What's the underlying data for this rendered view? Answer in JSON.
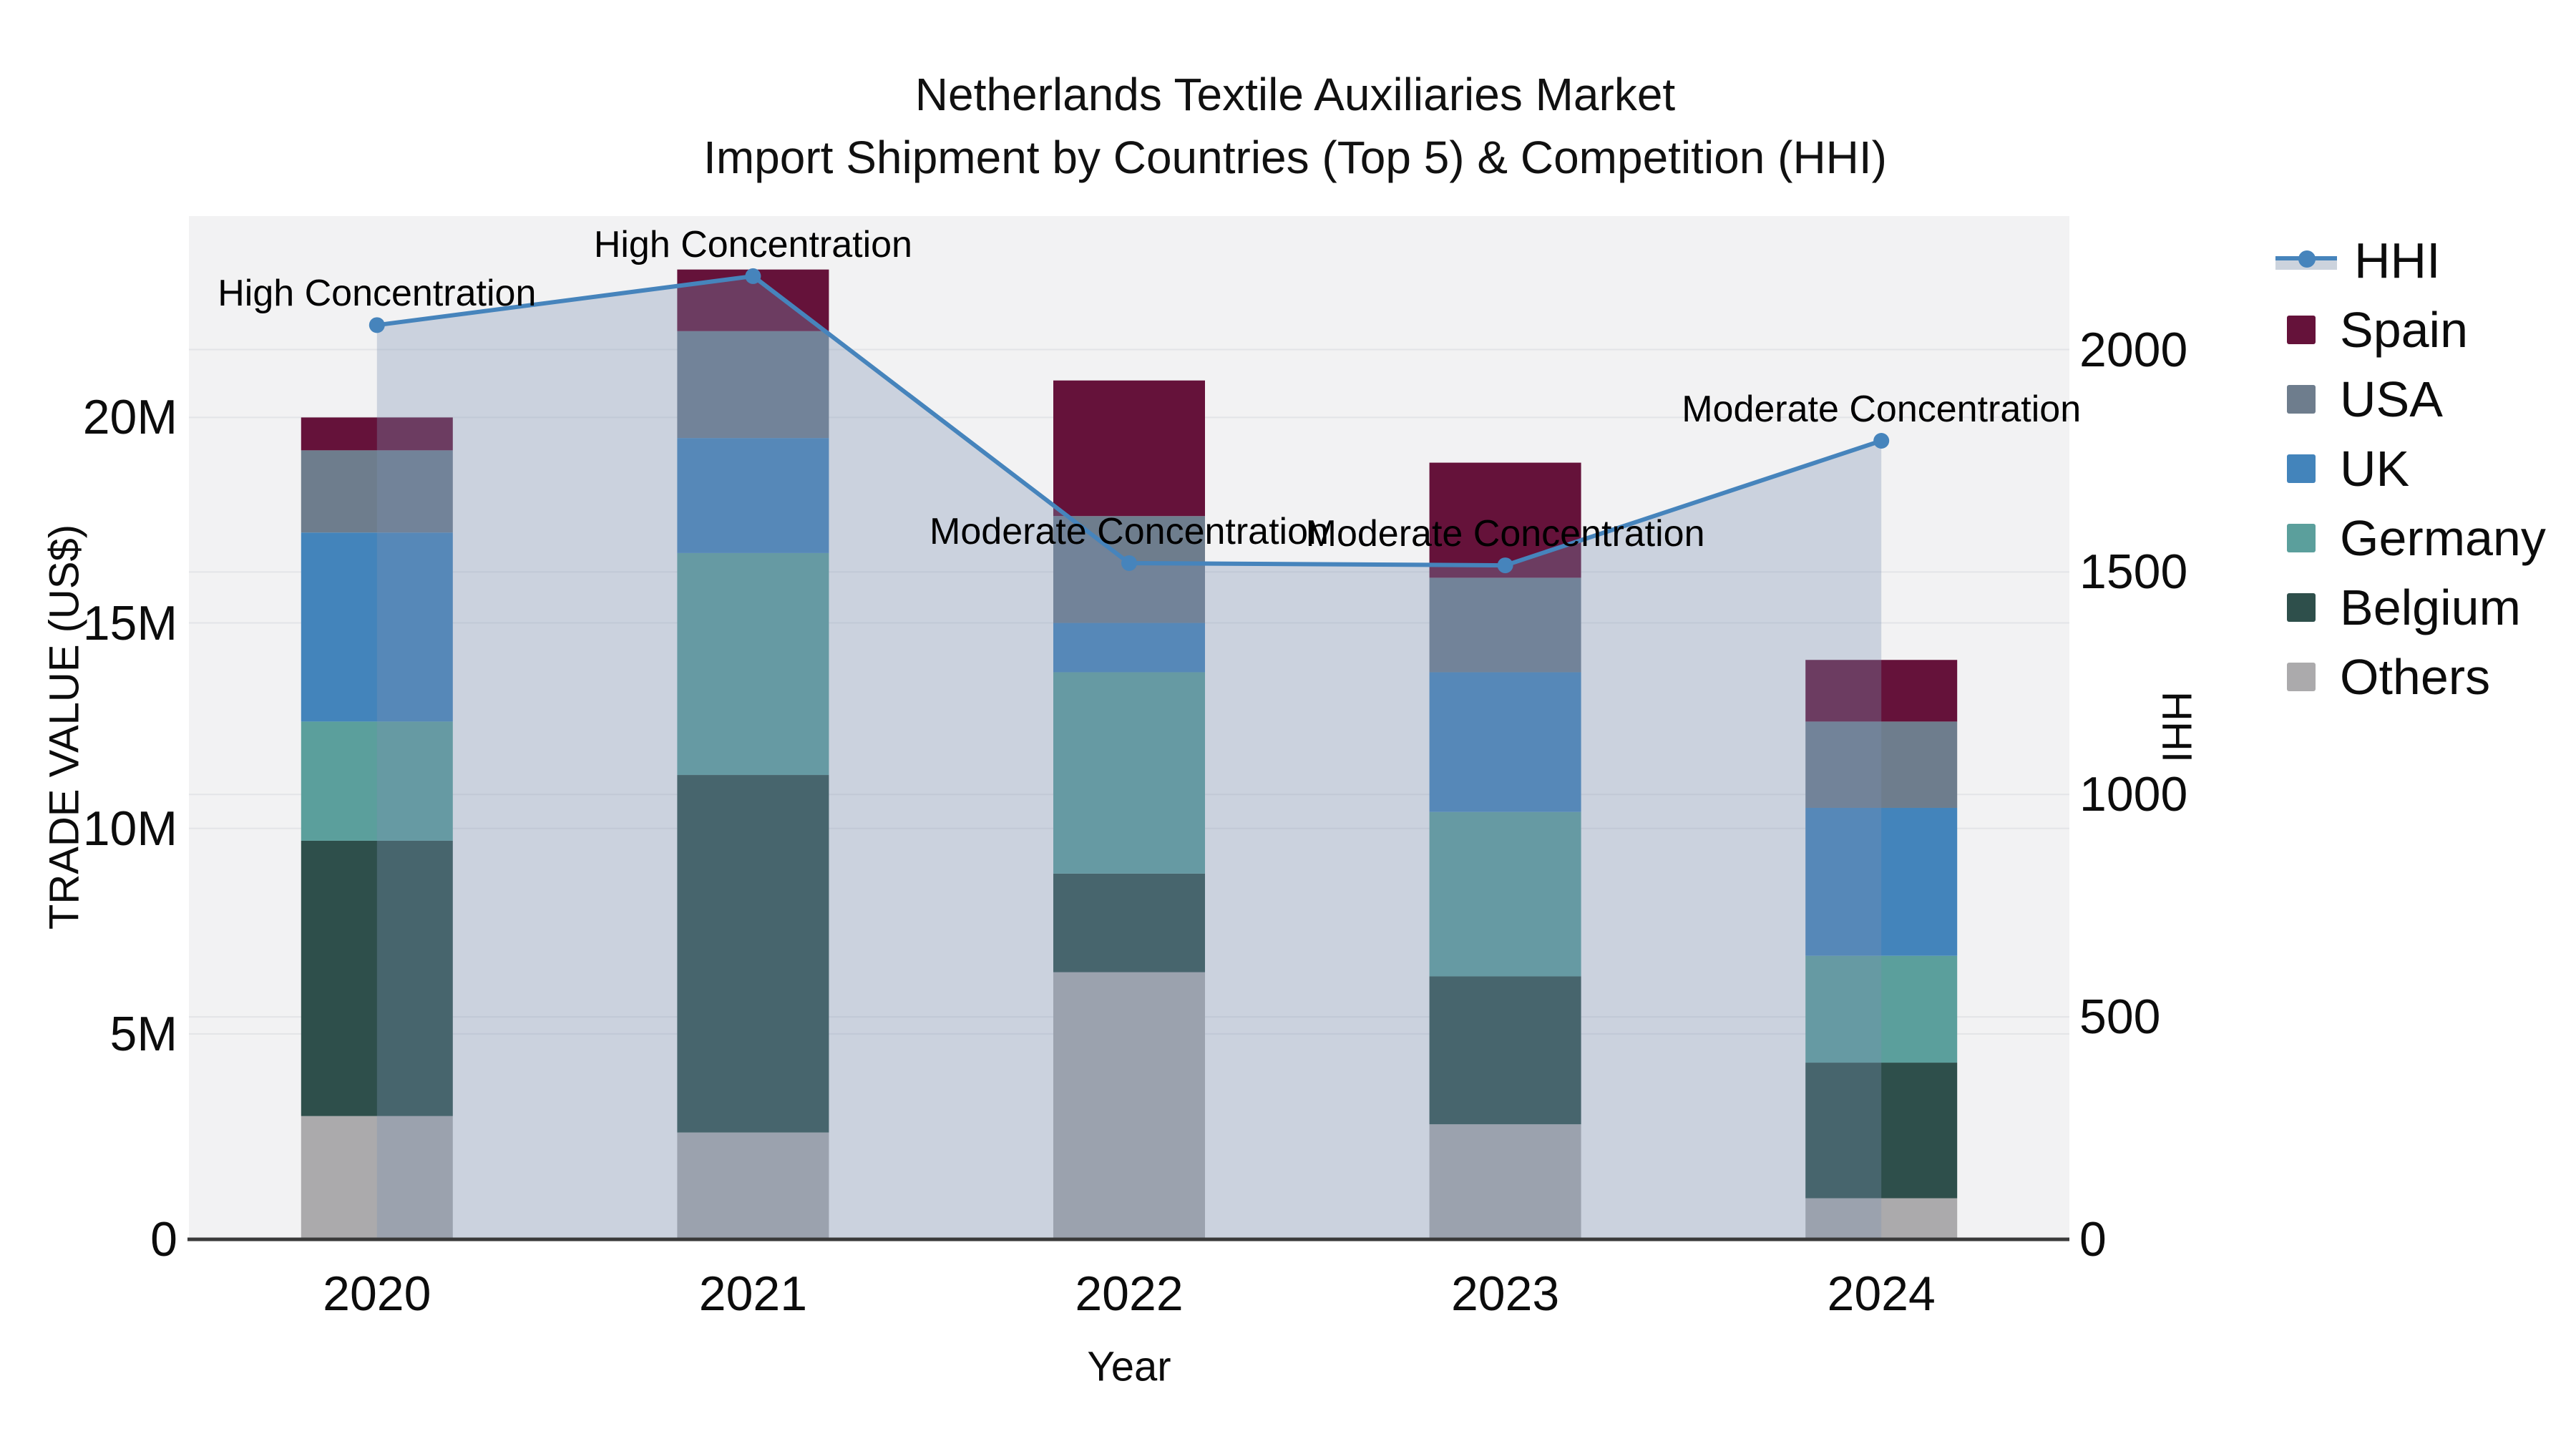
{
  "title": {
    "line1": "Netherlands Textile Auxiliaries Market",
    "line2": "Import Shipment by Countries (Top 5) & Competition (HHI)"
  },
  "axes": {
    "x": {
      "title": "Year"
    },
    "y_left": {
      "title": "TRADE VALUE (US$)",
      "ticks": [
        {
          "label": "0",
          "value": 0
        },
        {
          "label": "5M",
          "value": 5
        },
        {
          "label": "10M",
          "value": 10
        },
        {
          "label": "15M",
          "value": 15
        },
        {
          "label": "20M",
          "value": 20
        }
      ]
    },
    "y_right": {
      "title": "HHI",
      "ticks": [
        {
          "label": "0",
          "value": 0
        },
        {
          "label": "500",
          "value": 500
        },
        {
          "label": "1000",
          "value": 1000
        },
        {
          "label": "1500",
          "value": 1500
        },
        {
          "label": "2000",
          "value": 2000
        }
      ]
    }
  },
  "colors": {
    "plot_bg": "#f2f2f3",
    "grid": "#e3e4e7",
    "axis_line": "#3a3a3a",
    "hhi_line": "#4684bc",
    "hhi_area_fill": "rgba(125,145,180,0.33)",
    "hhi_legend_band": "#ccd3dd"
  },
  "legend": {
    "items": [
      {
        "label": "HHI",
        "type": "line",
        "color": "#4684bc"
      },
      {
        "label": "Spain",
        "type": "swatch",
        "color": "#65123a"
      },
      {
        "label": "USA",
        "type": "swatch",
        "color": "#6e7d8d"
      },
      {
        "label": "UK",
        "type": "swatch",
        "color": "#4384bb"
      },
      {
        "label": "Germany",
        "type": "swatch",
        "color": "#5b9f9c"
      },
      {
        "label": "Belgium",
        "type": "swatch",
        "color": "#2e4f4b"
      },
      {
        "label": "Others",
        "type": "swatch",
        "color": "#abaaac"
      }
    ]
  },
  "chart_data": {
    "type": "bar+line",
    "title": "Netherlands Textile Auxiliaries Market — Import Shipment by Countries (Top 5) & Competition (HHI)",
    "xlabel": "Year",
    "ylabel_left": "TRADE VALUE (US$)",
    "ylabel_right": "HHI",
    "categories": [
      "2020",
      "2021",
      "2022",
      "2023",
      "2024"
    ],
    "unit": "USD millions",
    "stack_note": "series listed top-to-bottom of stack; Others is bottom segment",
    "series": [
      {
        "name": "Spain",
        "color": "#65123a",
        "values": [
          0.8,
          1.5,
          3.3,
          2.8,
          1.5
        ]
      },
      {
        "name": "USA",
        "color": "#6e7d8d",
        "values": [
          2.0,
          2.6,
          2.6,
          2.3,
          2.1
        ]
      },
      {
        "name": "UK",
        "color": "#4384bb",
        "values": [
          4.6,
          2.8,
          1.2,
          3.4,
          3.6
        ]
      },
      {
        "name": "Germany",
        "color": "#5b9f9c",
        "values": [
          2.9,
          5.4,
          4.9,
          4.0,
          2.6
        ]
      },
      {
        "name": "Belgium",
        "color": "#2e4f4b",
        "values": [
          6.7,
          8.7,
          2.4,
          3.6,
          3.3
        ]
      },
      {
        "name": "Others",
        "color": "#abaaac",
        "values": [
          3.0,
          2.6,
          6.5,
          2.8,
          1.0
        ]
      }
    ],
    "totals": [
      20.0,
      23.6,
      20.9,
      18.9,
      14.1
    ],
    "hhi": {
      "name": "HHI",
      "color": "#4684bc",
      "fill": "rgba(125,145,180,0.33)",
      "values": [
        2055,
        2165,
        1520,
        1515,
        1795
      ]
    },
    "annotations": [
      {
        "category": "2020",
        "text": "High Concentration"
      },
      {
        "category": "2021",
        "text": "High Concentration"
      },
      {
        "category": "2022",
        "text": "Moderate Concentration"
      },
      {
        "category": "2023",
        "text": "Moderate Concentration"
      },
      {
        "category": "2024",
        "text": "Moderate Concentration"
      }
    ],
    "ylim_left": [
      0,
      24.9
    ],
    "ylim_right": [
      0,
      2300
    ],
    "grid": true,
    "legend_position": "right"
  }
}
